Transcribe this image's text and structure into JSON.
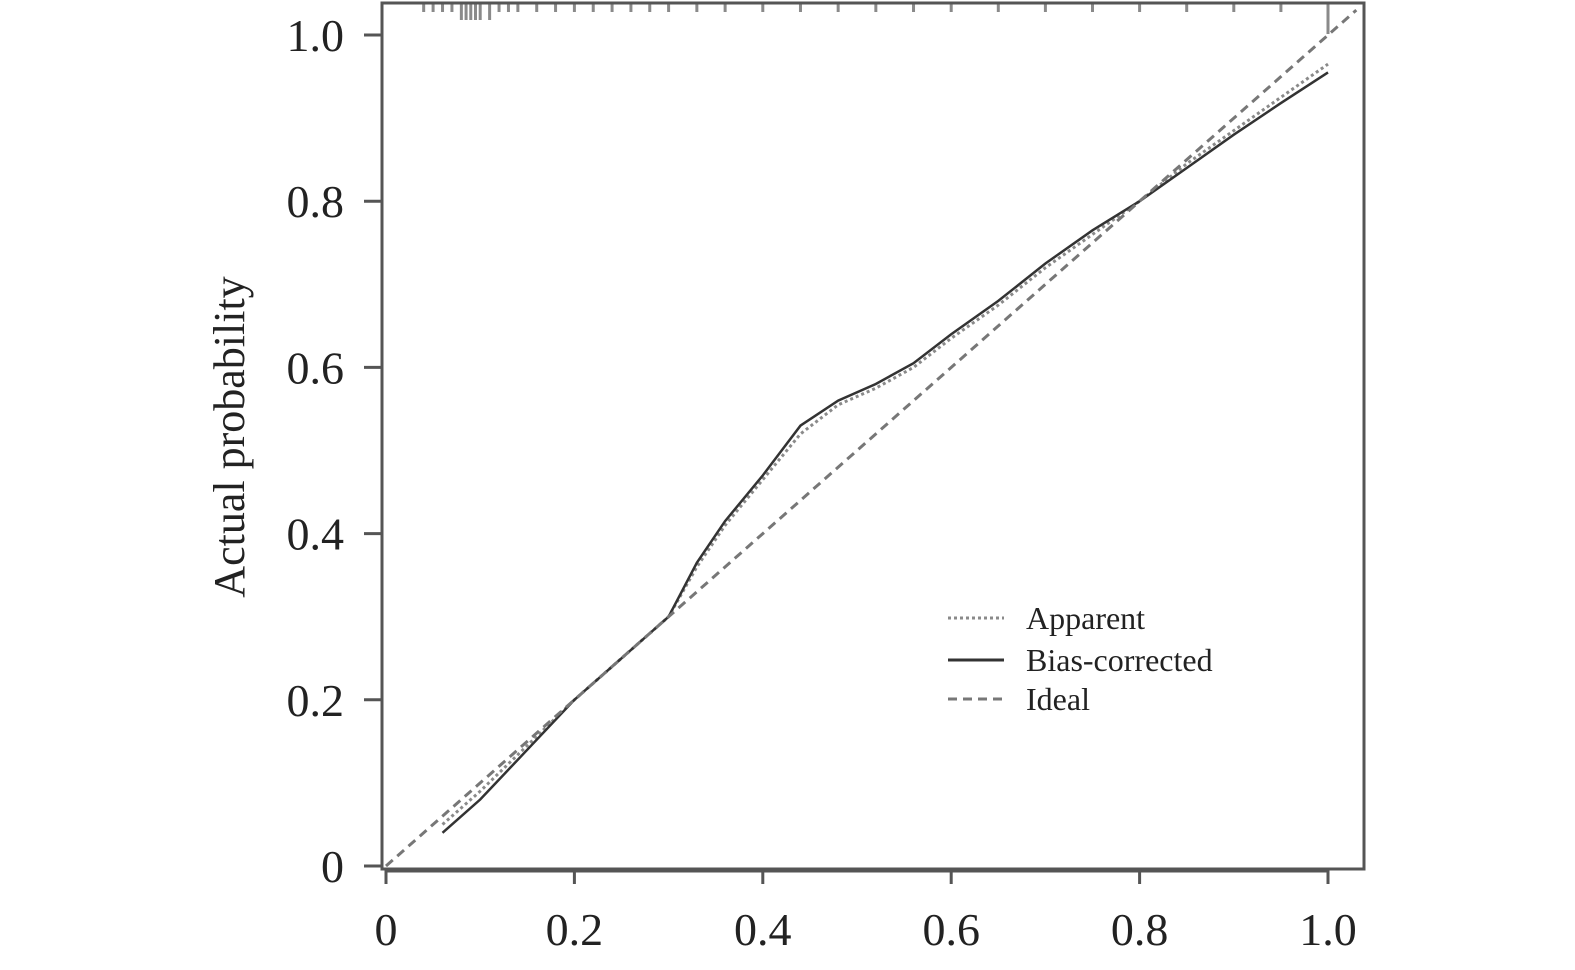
{
  "chart_data": {
    "type": "line",
    "title": "",
    "xlabel": "",
    "ylabel": "Actual probability",
    "xlim": [
      0,
      1.03
    ],
    "ylim": [
      0,
      1.04
    ],
    "x_ticks": [
      {
        "value": 0,
        "label": "0"
      },
      {
        "value": 0.2,
        "label": "0.2"
      },
      {
        "value": 0.4,
        "label": "0.4"
      },
      {
        "value": 0.6,
        "label": "0.6"
      },
      {
        "value": 0.8,
        "label": "0.8"
      },
      {
        "value": 1.0,
        "label": "1.0"
      }
    ],
    "y_ticks": [
      {
        "value": 0,
        "label": "0"
      },
      {
        "value": 0.2,
        "label": "0.2"
      },
      {
        "value": 0.4,
        "label": "0.4"
      },
      {
        "value": 0.6,
        "label": "0.6"
      },
      {
        "value": 0.8,
        "label": "0.8"
      },
      {
        "value": 1.0,
        "label": "1.0"
      }
    ],
    "grid": false,
    "legend_position": "lower-right",
    "series": [
      {
        "name": "Apparent",
        "style": "dotted",
        "color": "#8a8a8a",
        "x": [
          0.06,
          0.1,
          0.15,
          0.2,
          0.25,
          0.3,
          0.33,
          0.36,
          0.4,
          0.44,
          0.48,
          0.52,
          0.56,
          0.6,
          0.65,
          0.7,
          0.75,
          0.8,
          0.85,
          0.9,
          0.95,
          1.0
        ],
        "y": [
          0.05,
          0.09,
          0.145,
          0.2,
          0.25,
          0.3,
          0.36,
          0.41,
          0.465,
          0.52,
          0.555,
          0.575,
          0.6,
          0.635,
          0.675,
          0.72,
          0.76,
          0.8,
          0.845,
          0.885,
          0.925,
          0.965
        ]
      },
      {
        "name": "Bias-corrected",
        "style": "solid",
        "color": "#333333",
        "x": [
          0.06,
          0.1,
          0.15,
          0.2,
          0.25,
          0.3,
          0.33,
          0.36,
          0.4,
          0.44,
          0.48,
          0.52,
          0.56,
          0.6,
          0.65,
          0.7,
          0.75,
          0.8,
          0.85,
          0.9,
          0.95,
          1.0
        ],
        "y": [
          0.04,
          0.08,
          0.14,
          0.2,
          0.25,
          0.3,
          0.365,
          0.415,
          0.47,
          0.53,
          0.56,
          0.58,
          0.605,
          0.64,
          0.68,
          0.725,
          0.765,
          0.8,
          0.84,
          0.88,
          0.918,
          0.955
        ]
      },
      {
        "name": "Ideal",
        "style": "dashed",
        "color": "#777777",
        "x": [
          0,
          1.03
        ],
        "y": [
          0,
          1.03
        ]
      }
    ],
    "rug_top_x": [
      0.04,
      0.05,
      0.06,
      0.07,
      0.08,
      0.085,
      0.09,
      0.095,
      0.1,
      0.11,
      0.12,
      0.13,
      0.14,
      0.16,
      0.18,
      0.2,
      0.22,
      0.24,
      0.26,
      0.28,
      0.3,
      0.33,
      0.36,
      0.4,
      0.44,
      0.48,
      0.52,
      0.56,
      0.6,
      0.65,
      0.7,
      0.75,
      0.8,
      0.85,
      0.9,
      0.95,
      1.0
    ]
  }
}
